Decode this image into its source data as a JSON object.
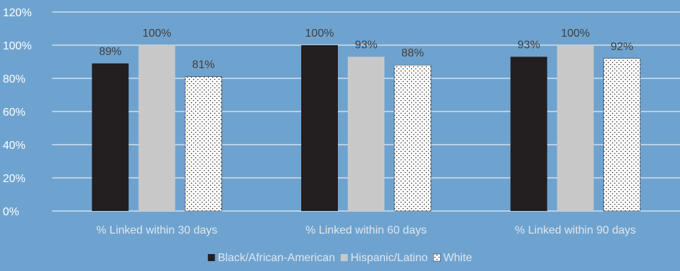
{
  "chart_data": {
    "type": "bar",
    "title": "",
    "xlabel": "",
    "ylabel": "",
    "categories": [
      "% Linked within 30 days",
      "% Linked within 60 days",
      "% Linked within 90 days"
    ],
    "series": [
      {
        "name": "Black/African-American",
        "values": [
          89,
          100,
          93
        ],
        "labels": [
          "89%",
          "100%",
          "93%"
        ],
        "color": "#231f20",
        "pattern": "solid"
      },
      {
        "name": "Hispanic/Latino",
        "values": [
          100,
          93,
          100
        ],
        "labels": [
          "100%",
          "93%",
          "100%"
        ],
        "color": "#c8c8c8",
        "pattern": "solid"
      },
      {
        "name": "White",
        "values": [
          81,
          88,
          92
        ],
        "labels": [
          "81%",
          "88%",
          "92%"
        ],
        "color": "#ffffff",
        "pattern": "dots"
      }
    ],
    "ylim": [
      0,
      120
    ],
    "yticks": [
      0,
      20,
      40,
      60,
      80,
      100,
      120
    ],
    "ytick_labels": [
      "0%",
      "20%",
      "40%",
      "60%",
      "80%",
      "100%",
      "120%"
    ],
    "grid": true,
    "legend_position": "bottom",
    "background_color": "#6fa3cf",
    "gridline_color": "#ffffff"
  }
}
